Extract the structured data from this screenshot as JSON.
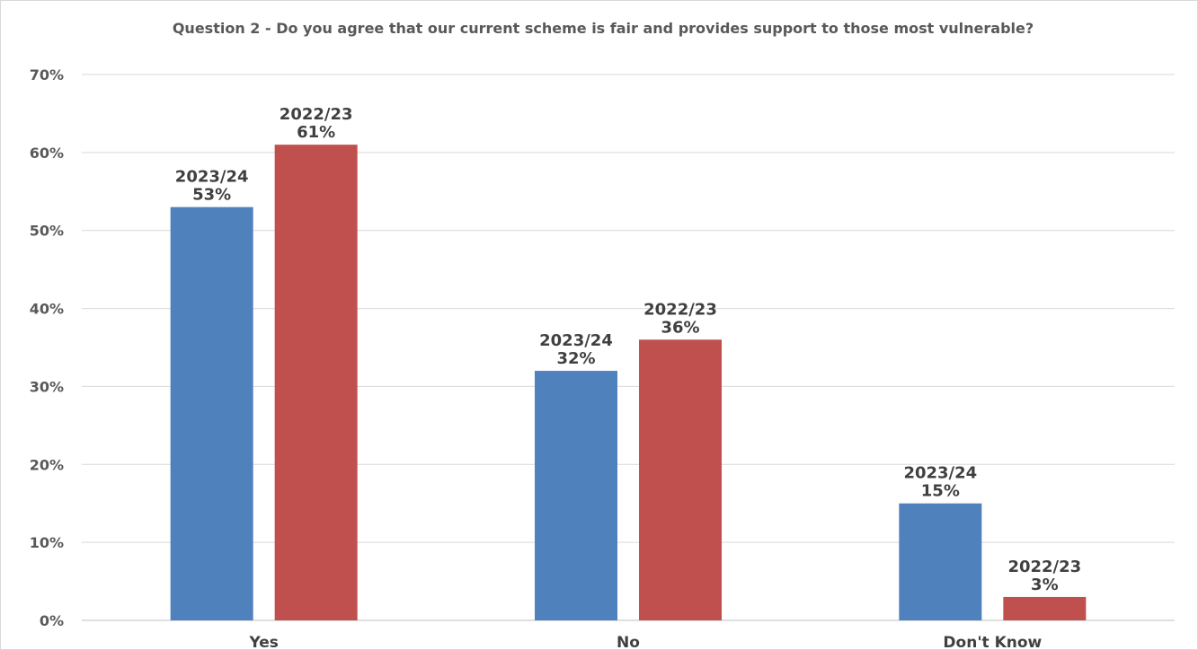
{
  "chart_data": {
    "type": "bar",
    "title": "Question 2 - Do you agree that our current scheme is fair and provides support to those most vulnerable?",
    "categories": [
      "Yes",
      "No",
      "Don't Know"
    ],
    "series": [
      {
        "name": "2023/24",
        "values": [
          53,
          32,
          15
        ],
        "color": "#4f81bd"
      },
      {
        "name": "2022/23",
        "values": [
          61,
          36,
          3
        ],
        "color": "#c0504d"
      }
    ],
    "ylim": [
      0,
      70
    ],
    "yticks": [
      "0%",
      "10%",
      "20%",
      "30%",
      "40%",
      "50%",
      "60%",
      "70%"
    ],
    "grid": true,
    "value_suffix": "%"
  }
}
